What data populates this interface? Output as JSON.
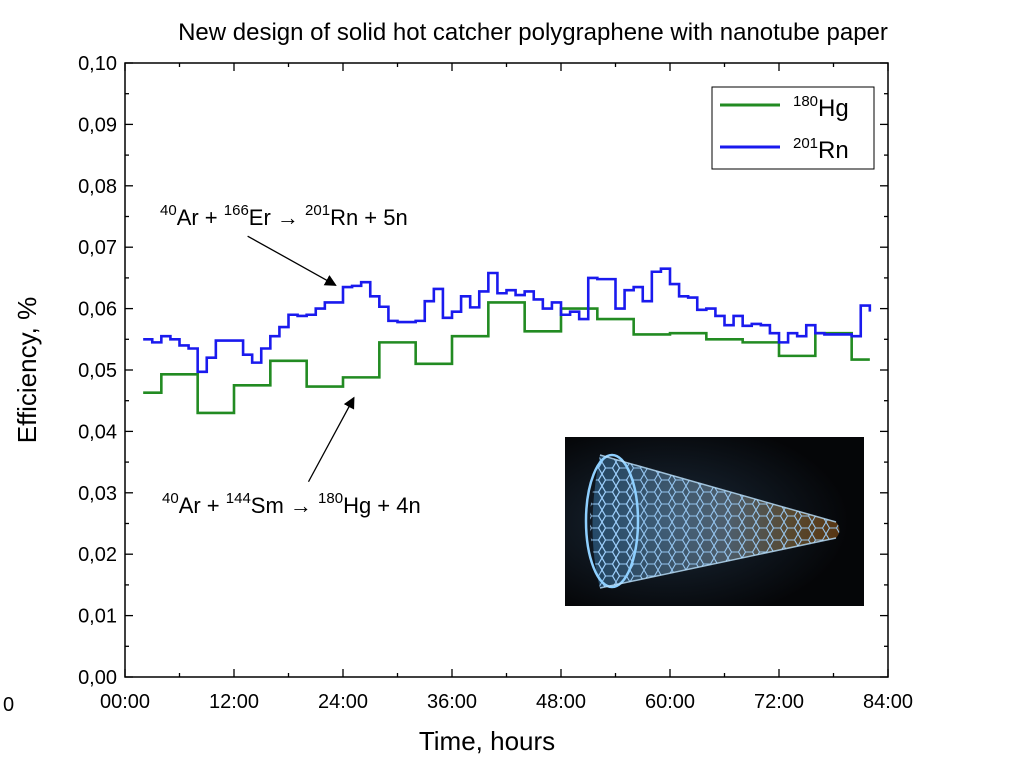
{
  "chart_data": {
    "type": "line",
    "title": "New design of solid hot catcher polygraphene with nanotube paper",
    "xlabel": "Time, hours",
    "ylabel": "Efficiency, %",
    "xlim": [
      0,
      84
    ],
    "ylim": [
      0,
      0.1
    ],
    "x_ticks": [
      {
        "value": 0,
        "label": "00:00"
      },
      {
        "value": 12,
        "label": "12:00"
      },
      {
        "value": 24,
        "label": "24:00"
      },
      {
        "value": 36,
        "label": "36:00"
      },
      {
        "value": 48,
        "label": "48:00"
      },
      {
        "value": 60,
        "label": "60:00"
      },
      {
        "value": 72,
        "label": "72:00"
      },
      {
        "value": 84,
        "label": "84:00"
      }
    ],
    "y_ticks": [
      {
        "value": 0.0,
        "label": "0,00"
      },
      {
        "value": 0.01,
        "label": "0,01"
      },
      {
        "value": 0.02,
        "label": "0,02"
      },
      {
        "value": 0.03,
        "label": "0,03"
      },
      {
        "value": 0.04,
        "label": "0,04"
      },
      {
        "value": 0.05,
        "label": "0,05"
      },
      {
        "value": 0.06,
        "label": "0,06"
      },
      {
        "value": 0.07,
        "label": "0,07"
      },
      {
        "value": 0.08,
        "label": "0,08"
      },
      {
        "value": 0.09,
        "label": "0,09"
      },
      {
        "value": 0.1,
        "label": "0,10"
      }
    ],
    "corner_label": "0",
    "grid": false,
    "legend_position": "top-right",
    "step": true,
    "series": [
      {
        "name_mass": "180",
        "name_symbol": "Hg",
        "color": "#228b22",
        "x": [
          2,
          4,
          8,
          12,
          16,
          20,
          24,
          28,
          32,
          36,
          40,
          44,
          48,
          52,
          56,
          60,
          64,
          68,
          72,
          76,
          80,
          82
        ],
        "y": [
          0.0463,
          0.0493,
          0.043,
          0.0475,
          0.0515,
          0.0473,
          0.0488,
          0.0545,
          0.051,
          0.0555,
          0.061,
          0.0563,
          0.06,
          0.0583,
          0.0558,
          0.056,
          0.055,
          0.0545,
          0.0523,
          0.056,
          0.0517,
          0.0517
        ]
      },
      {
        "name_mass": "201",
        "name_symbol": "Rn",
        "color": "#1a1aee",
        "x": [
          2,
          3,
          4,
          5,
          6,
          7,
          8,
          9,
          10,
          11,
          12,
          13,
          14,
          15,
          16,
          17,
          18,
          19,
          20,
          21,
          22,
          23,
          24,
          25,
          26,
          27,
          28,
          29,
          30,
          31,
          32,
          33,
          34,
          35,
          36,
          37,
          38,
          39,
          40,
          41,
          42,
          43,
          44,
          45,
          46,
          47,
          48,
          49,
          50,
          51,
          52,
          53,
          54,
          55,
          56,
          57,
          58,
          59,
          60,
          61,
          62,
          63,
          64,
          65,
          66,
          67,
          68,
          69,
          70,
          71,
          72,
          73,
          74,
          75,
          76,
          77,
          78,
          79,
          80,
          81,
          82
        ],
        "y": [
          0.055,
          0.0545,
          0.0555,
          0.055,
          0.054,
          0.0535,
          0.0497,
          0.052,
          0.0548,
          0.0548,
          0.0548,
          0.0525,
          0.0512,
          0.0535,
          0.0555,
          0.057,
          0.059,
          0.0588,
          0.059,
          0.06,
          0.061,
          0.061,
          0.0635,
          0.0637,
          0.0643,
          0.062,
          0.0603,
          0.058,
          0.0578,
          0.0578,
          0.058,
          0.0612,
          0.0632,
          0.0585,
          0.0595,
          0.062,
          0.0602,
          0.0628,
          0.0658,
          0.0625,
          0.063,
          0.0622,
          0.0628,
          0.0615,
          0.06,
          0.061,
          0.059,
          0.0595,
          0.0583,
          0.065,
          0.0648,
          0.0648,
          0.06,
          0.063,
          0.0635,
          0.0612,
          0.066,
          0.0665,
          0.064,
          0.062,
          0.0618,
          0.0598,
          0.06,
          0.0588,
          0.0573,
          0.0588,
          0.0572,
          0.0575,
          0.0573,
          0.056,
          0.0545,
          0.056,
          0.0555,
          0.0573,
          0.056,
          0.0558,
          0.0558,
          0.0558,
          0.0555,
          0.0605,
          0.0595
        ]
      }
    ],
    "annotations": [
      {
        "id": "rn",
        "parts": [
          {
            "text": "40",
            "sup": true
          },
          {
            "text": "Ar + ",
            "sup": false
          },
          {
            "text": "166",
            "sup": true
          },
          {
            "text": "Er → ",
            "sup": false
          },
          {
            "text": "201",
            "sup": true
          },
          {
            "text": "Rn + 5n",
            "sup": false
          }
        ],
        "arrow_from": [
          13.5,
          0.0718
        ],
        "arrow_to": [
          23.2,
          0.0638
        ]
      },
      {
        "id": "hg",
        "parts": [
          {
            "text": "40",
            "sup": true
          },
          {
            "text": "Ar + ",
            "sup": false
          },
          {
            "text": "144",
            "sup": true
          },
          {
            "text": "Sm → ",
            "sup": false
          },
          {
            "text": "180",
            "sup": true
          },
          {
            "text": "Hg + 4n",
            "sup": false
          }
        ],
        "arrow_from": [
          20.2,
          0.0318
        ],
        "arrow_to": [
          25.2,
          0.0455
        ]
      }
    ]
  }
}
